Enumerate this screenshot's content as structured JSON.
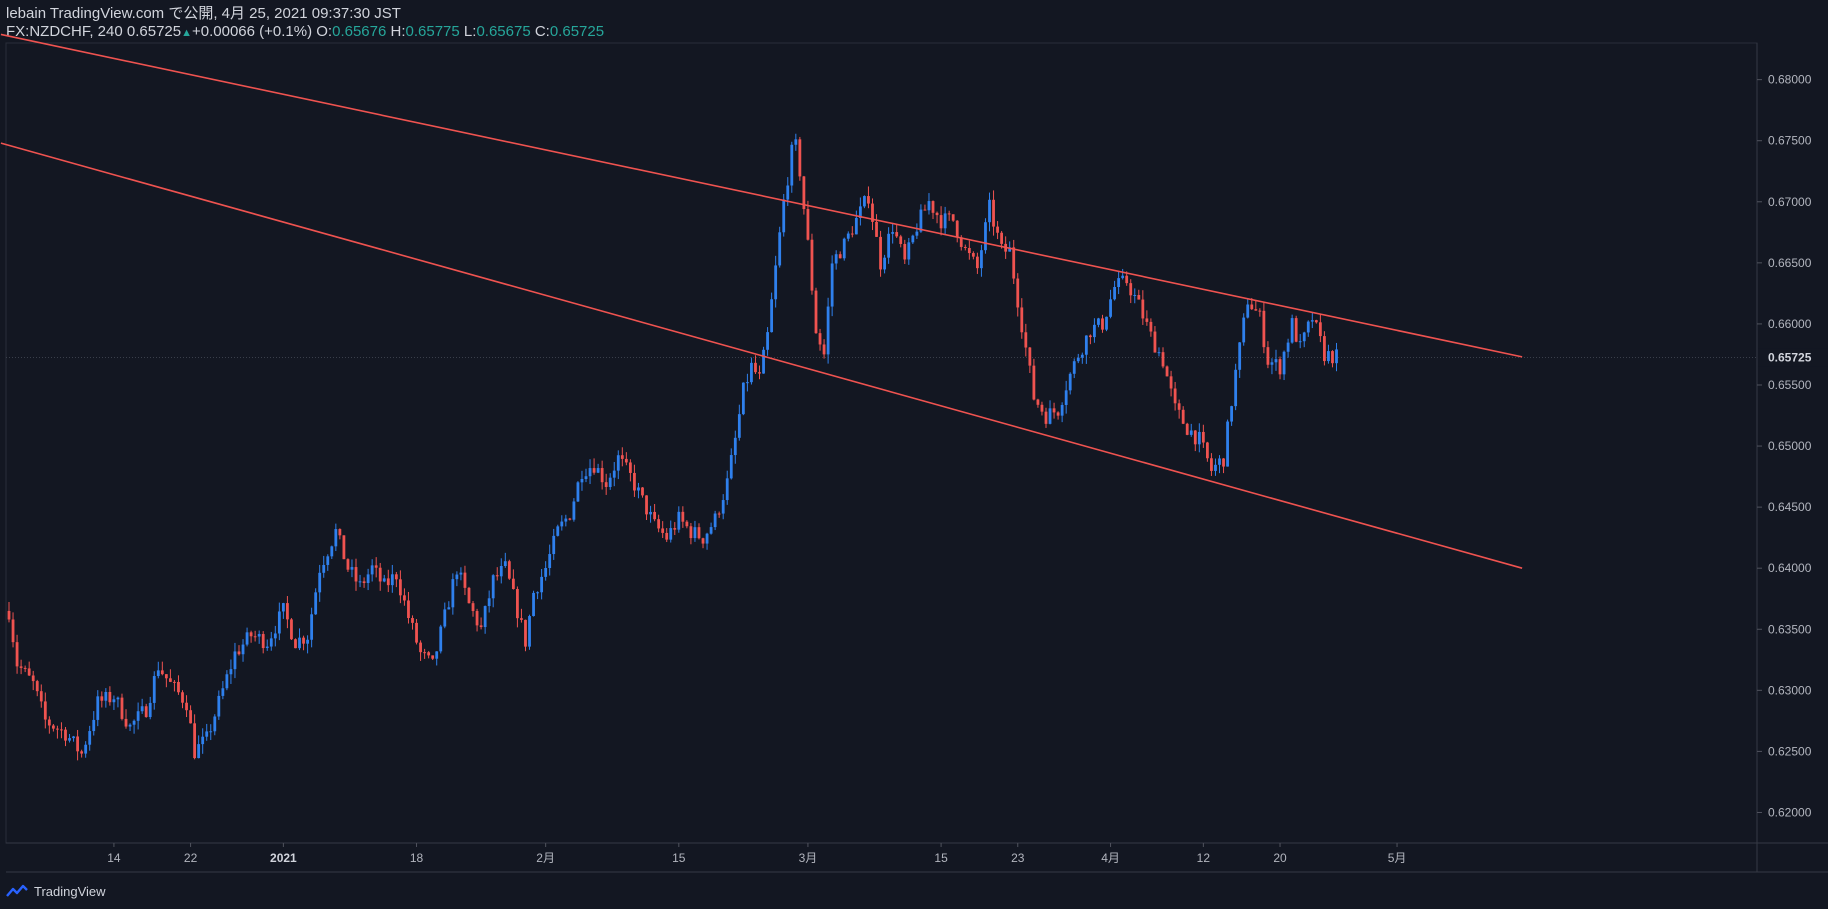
{
  "header": {
    "line1": "lebain TradingView.com で公開, 4月 25, 2021 09:37:30 JST",
    "symbol": "FX:NZDCHF, 240",
    "last": "0.65725",
    "up_icon": "triangle-up-icon",
    "change": "+0.00066 (+0.1%)",
    "o_label": "O:",
    "o_value": "0.65676",
    "h_label": "H:",
    "h_value": "0.65775",
    "l_label": "L:",
    "l_value": "0.65675",
    "c_label": "C:",
    "c_value": "0.65725"
  },
  "footer": {
    "brand": "TradingView",
    "logo": "tradingview-logo-icon"
  },
  "colors": {
    "background": "#131722",
    "up": "#2f80ed",
    "down": "#ef5350",
    "trendline": "#ef5350",
    "axis_text": "#b2b5be",
    "value_green": "#26a69a"
  },
  "chart_data": {
    "type": "candlestick",
    "title": "",
    "ylim": [
      0.6175,
      0.683
    ],
    "y_ticks": [
      "0.62000",
      "0.62500",
      "0.63000",
      "0.63500",
      "0.64000",
      "0.64500",
      "0.65000",
      "0.65500",
      "0.66000",
      "0.66500",
      "0.67000",
      "0.67500",
      "0.68000"
    ],
    "current_price_label": "0.65725",
    "current_price": 0.65725,
    "x_ticks": [
      {
        "label": "14",
        "bar": 26
      },
      {
        "label": "22",
        "bar": 45
      },
      {
        "label": "2021",
        "bar": 68,
        "bold": true
      },
      {
        "label": "18",
        "bar": 101
      },
      {
        "label": "2月",
        "bar": 133
      },
      {
        "label": "15",
        "bar": 166
      },
      {
        "label": "3月",
        "bar": 198
      },
      {
        "label": "15",
        "bar": 231
      },
      {
        "label": "23",
        "bar": 250
      },
      {
        "label": "4月",
        "bar": 273
      },
      {
        "label": "12",
        "bar": 296
      },
      {
        "label": "20",
        "bar": 315
      },
      {
        "label": "5月",
        "bar": 344
      }
    ],
    "bar_count": 375,
    "trendlines": [
      {
        "name": "upper",
        "from": {
          "bar": -2,
          "price": 0.6837
        },
        "to": {
          "bar": 375,
          "price": 0.6573
        }
      },
      {
        "name": "lower",
        "from": {
          "bar": -2,
          "price": 0.6748
        },
        "to": {
          "bar": 375,
          "price": 0.64
        }
      }
    ],
    "path_anchors": [
      [
        0,
        0.6365
      ],
      [
        2,
        0.6322
      ],
      [
        6,
        0.6305
      ],
      [
        9,
        0.6275
      ],
      [
        14,
        0.6265
      ],
      [
        18,
        0.6248
      ],
      [
        22,
        0.629
      ],
      [
        26,
        0.6295
      ],
      [
        30,
        0.627
      ],
      [
        34,
        0.6285
      ],
      [
        37,
        0.632
      ],
      [
        40,
        0.6305
      ],
      [
        44,
        0.629
      ],
      [
        46,
        0.625
      ],
      [
        49,
        0.626
      ],
      [
        52,
        0.629
      ],
      [
        56,
        0.633
      ],
      [
        60,
        0.6345
      ],
      [
        64,
        0.634
      ],
      [
        68,
        0.6365
      ],
      [
        71,
        0.634
      ],
      [
        74,
        0.6345
      ],
      [
        77,
        0.64
      ],
      [
        81,
        0.643
      ],
      [
        84,
        0.64
      ],
      [
        87,
        0.6385
      ],
      [
        90,
        0.64
      ],
      [
        93,
        0.6385
      ],
      [
        96,
        0.6395
      ],
      [
        99,
        0.636
      ],
      [
        102,
        0.633
      ],
      [
        105,
        0.632
      ],
      [
        108,
        0.636
      ],
      [
        111,
        0.64
      ],
      [
        114,
        0.637
      ],
      [
        117,
        0.635
      ],
      [
        120,
        0.639
      ],
      [
        123,
        0.64
      ],
      [
        126,
        0.6365
      ],
      [
        128,
        0.634
      ],
      [
        130,
        0.638
      ],
      [
        133,
        0.64
      ],
      [
        136,
        0.643
      ],
      [
        139,
        0.6445
      ],
      [
        142,
        0.648
      ],
      [
        145,
        0.6485
      ],
      [
        148,
        0.647
      ],
      [
        151,
        0.649
      ],
      [
        154,
        0.6475
      ],
      [
        157,
        0.6455
      ],
      [
        160,
        0.6435
      ],
      [
        163,
        0.6425
      ],
      [
        166,
        0.644
      ],
      [
        169,
        0.643
      ],
      [
        172,
        0.6425
      ],
      [
        175,
        0.644
      ],
      [
        178,
        0.647
      ],
      [
        180,
        0.6505
      ],
      [
        182,
        0.6545
      ],
      [
        184,
        0.6565
      ],
      [
        186,
        0.6555
      ],
      [
        188,
        0.659
      ],
      [
        190,
        0.6645
      ],
      [
        192,
        0.67
      ],
      [
        194,
        0.674
      ],
      [
        195,
        0.6745
      ],
      [
        196,
        0.6725
      ],
      [
        198,
        0.6665
      ],
      [
        200,
        0.6595
      ],
      [
        202,
        0.6575
      ],
      [
        204,
        0.665
      ],
      [
        207,
        0.6665
      ],
      [
        210,
        0.6685
      ],
      [
        213,
        0.6705
      ],
      [
        216,
        0.665
      ],
      [
        219,
        0.668
      ],
      [
        222,
        0.665
      ],
      [
        225,
        0.668
      ],
      [
        228,
        0.67
      ],
      [
        231,
        0.6685
      ],
      [
        234,
        0.6685
      ],
      [
        237,
        0.666
      ],
      [
        240,
        0.6645
      ],
      [
        243,
        0.6695
      ],
      [
        246,
        0.666
      ],
      [
        248,
        0.666
      ],
      [
        250,
        0.662
      ],
      [
        252,
        0.658
      ],
      [
        254,
        0.654
      ],
      [
        257,
        0.6525
      ],
      [
        260,
        0.653
      ],
      [
        262,
        0.655
      ],
      [
        265,
        0.6575
      ],
      [
        268,
        0.6595
      ],
      [
        271,
        0.66
      ],
      [
        274,
        0.663
      ],
      [
        277,
        0.6635
      ],
      [
        280,
        0.6615
      ],
      [
        283,
        0.659
      ],
      [
        286,
        0.657
      ],
      [
        289,
        0.653
      ],
      [
        292,
        0.6515
      ],
      [
        295,
        0.6505
      ],
      [
        298,
        0.648
      ],
      [
        301,
        0.649
      ],
      [
        304,
        0.656
      ],
      [
        307,
        0.662
      ],
      [
        310,
        0.6605
      ],
      [
        312,
        0.657
      ],
      [
        315,
        0.6565
      ],
      [
        318,
        0.66
      ],
      [
        320,
        0.658
      ],
      [
        323,
        0.6605
      ],
      [
        326,
        0.6575
      ],
      [
        329,
        0.6573
      ]
    ]
  }
}
